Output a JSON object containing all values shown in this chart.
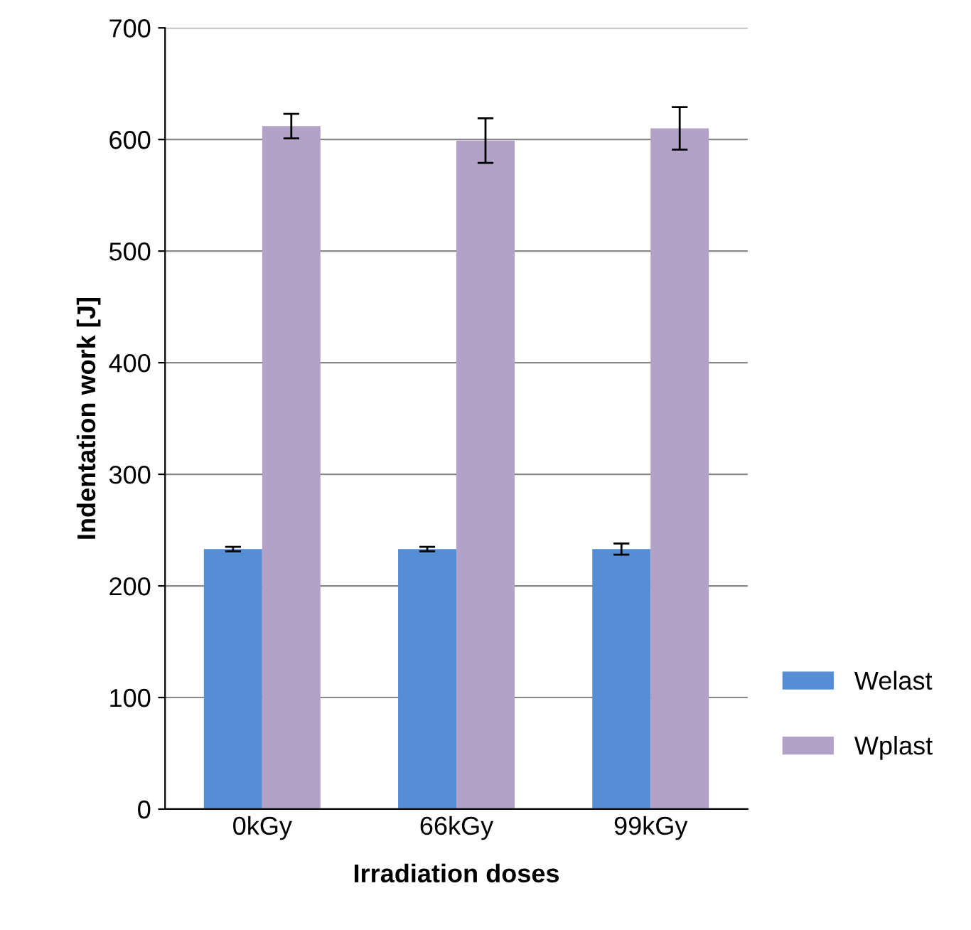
{
  "chart_data": {
    "type": "bar",
    "xlabel": "Irradiation doses",
    "ylabel": "Indentation work [J]",
    "categories": [
      "0kGy",
      "66kGy",
      "99kGy"
    ],
    "series": [
      {
        "name": "Welast",
        "color": "#558ed5",
        "values": [
          233,
          233,
          233
        ],
        "errors": [
          2,
          2,
          5
        ]
      },
      {
        "name": "Wplast",
        "color": "#b3a2c7",
        "values": [
          612,
          599,
          610
        ],
        "errors": [
          11,
          20,
          19
        ]
      }
    ],
    "ylim": [
      0,
      700
    ],
    "yticks": [
      0,
      100,
      200,
      300,
      400,
      500,
      600,
      700
    ],
    "grid": "y",
    "legend": "right"
  }
}
